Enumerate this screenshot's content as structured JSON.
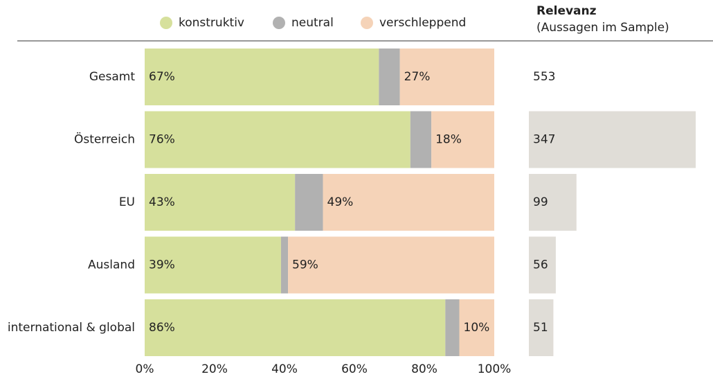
{
  "chart_data": [
    {
      "type": "bar",
      "orientation": "horizontal",
      "stacked": true,
      "categories": [
        "Gesamt",
        "Österreich",
        "EU",
        "Ausland",
        "international & global"
      ],
      "series": [
        {
          "name": "konstruktiv",
          "color": "#d6e09c",
          "values": [
            67,
            76,
            43,
            39,
            86
          ],
          "value_labels": [
            "67%",
            "76%",
            "43%",
            "39%",
            "86%"
          ]
        },
        {
          "name": "neutral",
          "color": "#b1b1b1",
          "values": [
            6,
            6,
            8,
            2,
            4
          ]
        },
        {
          "name": "verschleppend",
          "color": "#f5d3b8",
          "values": [
            27,
            18,
            49,
            59,
            10
          ],
          "value_labels": [
            "27%",
            "18%",
            "49%",
            "59%",
            "10%"
          ]
        }
      ],
      "xlim": [
        0,
        100
      ],
      "xticks": [
        {
          "value": 0,
          "label": "0%"
        },
        {
          "value": 20,
          "label": "20%"
        },
        {
          "value": 40,
          "label": "40%"
        },
        {
          "value": 60,
          "label": "60%"
        },
        {
          "value": 80,
          "label": "80%"
        },
        {
          "value": 100,
          "label": "100%"
        }
      ],
      "legend": "top"
    },
    {
      "type": "bar",
      "orientation": "horizontal",
      "title": "Relevanz",
      "subtitle": "(Aussagen im Sample)",
      "total": 553,
      "values": [
        347,
        99,
        56,
        51
      ],
      "color": "#e0ddd7"
    }
  ]
}
